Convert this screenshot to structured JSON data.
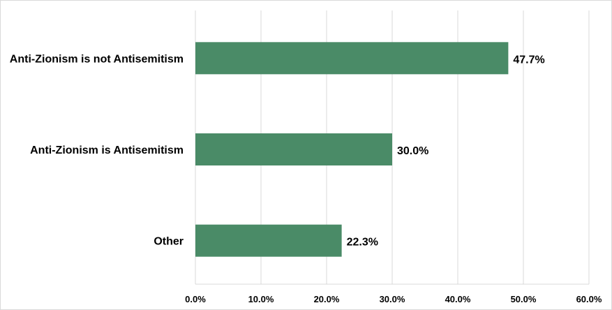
{
  "chart_data": {
    "type": "bar",
    "orientation": "horizontal",
    "categories": [
      "Anti-Zionism is not Antisemitism",
      "Anti-Zionism is Antisemitism",
      "Other"
    ],
    "values": [
      47.7,
      30.0,
      22.3
    ],
    "value_labels": [
      "47.7%",
      "30.0%",
      "22.3%"
    ],
    "xlim": [
      0,
      60
    ],
    "xticks": [
      "0.0%",
      "10.0%",
      "20.0%",
      "30.0%",
      "40.0%",
      "50.0%",
      "60.0%"
    ],
    "title": "",
    "xlabel": "",
    "ylabel": "",
    "grid": true,
    "bar_color": "#4a8b67"
  }
}
